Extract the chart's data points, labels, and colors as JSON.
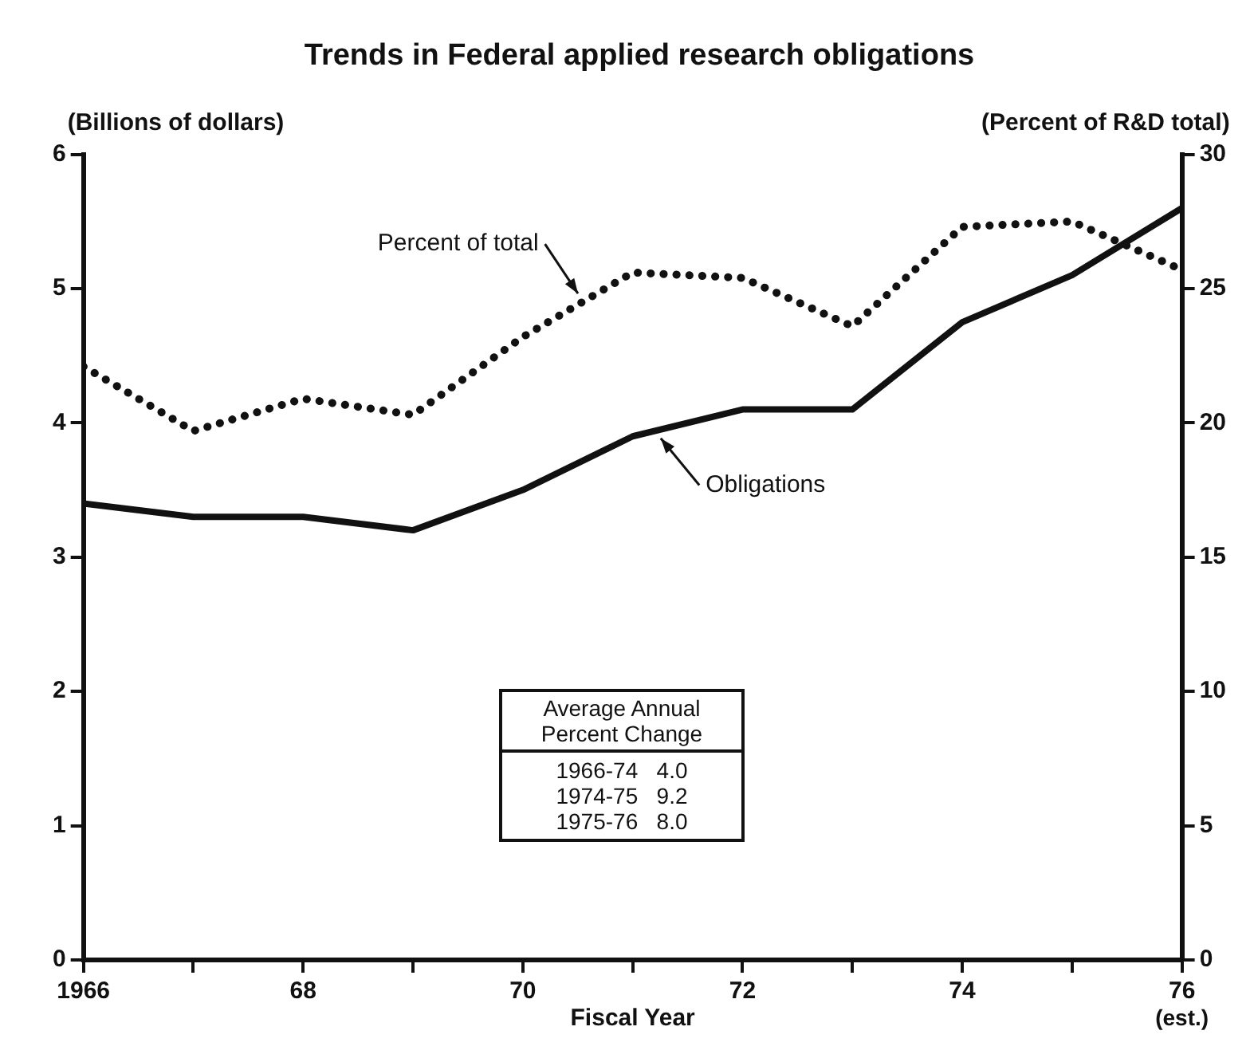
{
  "chart_data": {
    "type": "line",
    "title": "Trends in Federal applied research obligations",
    "xlabel": "Fiscal Year",
    "ylabel": "(Billions of dollars)",
    "y2label": "(Percent of R&D total)",
    "x": [
      1966,
      1967,
      1968,
      1969,
      1970,
      1971,
      1972,
      1973,
      1974,
      1975,
      1976
    ],
    "xlim": [
      1966,
      1976
    ],
    "xticks": [
      1966,
      {
        "value": 1967,
        "label": null
      },
      {
        "value": 1968,
        "label": "68"
      },
      {
        "value": 1969,
        "label": null
      },
      {
        "value": 1970,
        "label": "70"
      },
      {
        "value": 1971,
        "label": null
      },
      {
        "value": 1972,
        "label": "72"
      },
      {
        "value": 1973,
        "label": null
      },
      {
        "value": 1974,
        "label": "74"
      },
      {
        "value": 1975,
        "label": null
      },
      {
        "value": 1976,
        "label": "76"
      }
    ],
    "ylim": [
      0,
      6
    ],
    "yticks": [
      0,
      1,
      2,
      3,
      4,
      5,
      6
    ],
    "y2lim": [
      0,
      30
    ],
    "y2ticks": [
      0,
      5,
      10,
      15,
      20,
      25,
      30
    ],
    "series": [
      {
        "name": "Percent of total",
        "color": "#111111",
        "axis": "y2",
        "line_style": "dotted",
        "values": [
          22.1,
          19.7,
          20.9,
          20.3,
          23.2,
          25.6,
          25.4,
          23.6,
          27.3,
          27.5,
          25.7
        ]
      },
      {
        "name": "Obligations",
        "color": "#111111",
        "axis": "y",
        "line_style": "solid",
        "values": [
          3.4,
          3.3,
          3.3,
          3.2,
          3.5,
          3.9,
          4.1,
          4.1,
          4.75,
          5.1,
          5.6
        ]
      }
    ],
    "annotations": [
      "(est.)",
      "Average Annual Percent Change",
      "1966-74   4.0",
      "1974-75   9.2",
      "1975-76   8.0"
    ],
    "grid": false,
    "legend": false,
    "marker": "none"
  }
}
